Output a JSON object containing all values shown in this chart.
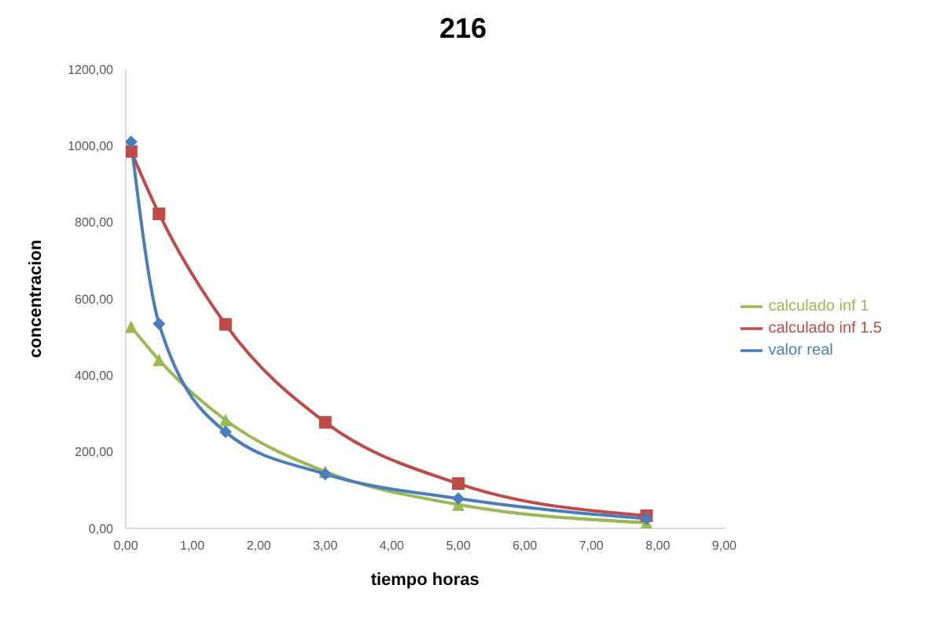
{
  "chart_data": {
    "type": "line",
    "title": "216",
    "xlabel": "tiempo horas",
    "ylabel": "concentracion",
    "x": [
      0.08,
      0.5,
      1.5,
      3,
      5,
      7.83
    ],
    "series": [
      {
        "name": "valor real",
        "color": "#4a7ebb",
        "marker": "diamond",
        "values": [
          1010,
          535,
          252,
          142,
          78,
          25
        ]
      },
      {
        "name": "calculado inf 1.5",
        "color": "#be4b48",
        "marker": "square",
        "values": [
          985,
          822,
          533,
          277,
          117,
          33
        ]
      },
      {
        "name": "calculado inf 1",
        "color": "#98b954",
        "marker": "triangle",
        "values": [
          527,
          440,
          283,
          148,
          62,
          15
        ]
      }
    ],
    "xlim": [
      0,
      9
    ],
    "xticks": [
      {
        "value": 0,
        "label": "0,00"
      },
      {
        "value": 1,
        "label": "1,00"
      },
      {
        "value": 2,
        "label": "2,00"
      },
      {
        "value": 3,
        "label": "3,00"
      },
      {
        "value": 4,
        "label": "4,00"
      },
      {
        "value": 5,
        "label": "5,00"
      },
      {
        "value": 6,
        "label": "6,00"
      },
      {
        "value": 7,
        "label": "7,00"
      },
      {
        "value": 8,
        "label": "8,00"
      },
      {
        "value": 9,
        "label": "9,00"
      }
    ],
    "ylim": [
      0,
      1200
    ],
    "yticks": [
      {
        "value": 0,
        "label": "0,00"
      },
      {
        "value": 200,
        "label": "200,00"
      },
      {
        "value": 400,
        "label": "400,00"
      },
      {
        "value": 600,
        "label": "600,00"
      },
      {
        "value": 800,
        "label": "800,00"
      },
      {
        "value": 1000,
        "label": "1000,00"
      },
      {
        "value": 1200,
        "label": "1200,00"
      }
    ],
    "grid": false,
    "legend": "right",
    "line_style": "solid"
  }
}
